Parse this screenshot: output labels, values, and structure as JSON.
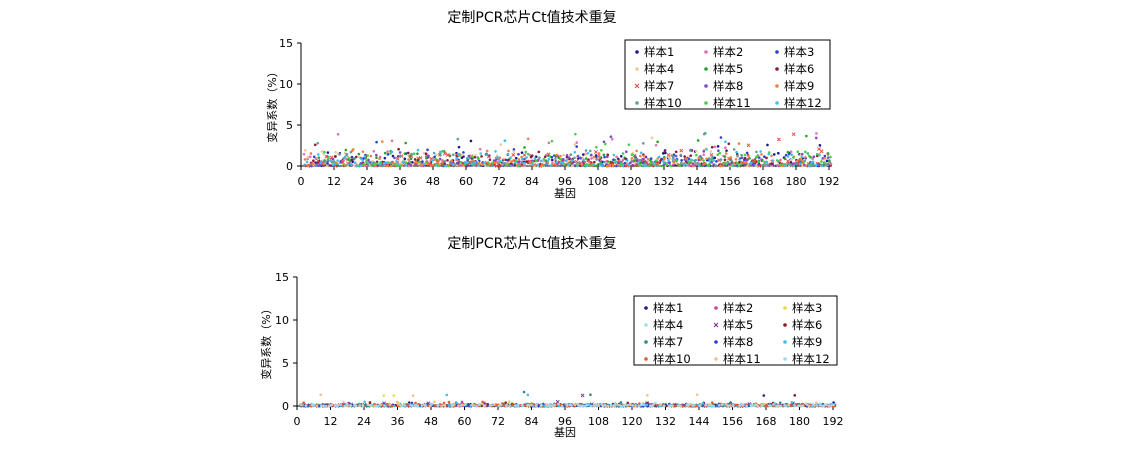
{
  "chart_data": [
    {
      "type": "scatter",
      "title": "定制PCR芯片Ct值技术重复",
      "xlabel": "基因",
      "ylabel": "变异系数（%）",
      "xlim": [
        0,
        192
      ],
      "ylim": [
        0,
        15
      ],
      "xticks": [
        0,
        12,
        24,
        36,
        48,
        60,
        72,
        84,
        96,
        108,
        120,
        132,
        144,
        156,
        168,
        180,
        192
      ],
      "yticks": [
        0,
        5,
        10,
        15
      ],
      "legend_position": "top-right",
      "series": [
        {
          "name": "样本1",
          "color": "#1a1a8c",
          "marker": "dot"
        },
        {
          "name": "样本2",
          "color": "#e070b0",
          "marker": "dot"
        },
        {
          "name": "样本3",
          "color": "#2b3fcf",
          "marker": "dot"
        },
        {
          "name": "样本4",
          "color": "#f0c8a0",
          "marker": "dot"
        },
        {
          "name": "样本5",
          "color": "#2ca02c",
          "marker": "dot"
        },
        {
          "name": "样本6",
          "color": "#8b1a3a",
          "marker": "dot"
        },
        {
          "name": "样本7",
          "color": "#e8463c",
          "marker": "x"
        },
        {
          "name": "样本8",
          "color": "#7b48c8",
          "marker": "dot"
        },
        {
          "name": "样本9",
          "color": "#f08040",
          "marker": "dot"
        },
        {
          "name": "样本10",
          "color": "#5f9ea0",
          "marker": "dot"
        },
        {
          "name": "样本11",
          "color": "#44d044",
          "marker": "dot"
        },
        {
          "name": "样本12",
          "color": "#40c0e8",
          "marker": "dot"
        }
      ]
    },
    {
      "type": "scatter",
      "title": "定制PCR芯片Ct值技术重复",
      "xlabel": "基因",
      "ylabel": "变异系数（%）",
      "xlim": [
        0,
        192
      ],
      "ylim": [
        0,
        15
      ],
      "xticks": [
        0,
        12,
        24,
        36,
        48,
        60,
        72,
        84,
        96,
        108,
        120,
        132,
        144,
        156,
        168,
        180,
        192
      ],
      "yticks": [
        0,
        5,
        10,
        15
      ],
      "legend_position": "top-right",
      "series": [
        {
          "name": "样本1",
          "color": "#1a1a8c",
          "marker": "dot"
        },
        {
          "name": "样本2",
          "color": "#d0409a",
          "marker": "dot"
        },
        {
          "name": "样本3",
          "color": "#e8d84a",
          "marker": "dot"
        },
        {
          "name": "样本4",
          "color": "#a0e0e8",
          "marker": "dot"
        },
        {
          "name": "样本5",
          "color": "#7a2a8a",
          "marker": "x"
        },
        {
          "name": "样本6",
          "color": "#8b1a1a",
          "marker": "dot"
        },
        {
          "name": "样本7",
          "color": "#2a8a8a",
          "marker": "dot"
        },
        {
          "name": "样本8",
          "color": "#2b3fcf",
          "marker": "dot"
        },
        {
          "name": "样本9",
          "color": "#40c0e8",
          "marker": "dot"
        },
        {
          "name": "样本10",
          "color": "#e85a2a",
          "marker": "dot"
        },
        {
          "name": "样本11",
          "color": "#f0c090",
          "marker": "dot"
        },
        {
          "name": "样本12",
          "color": "#a0d8f0",
          "marker": "dot"
        }
      ]
    }
  ]
}
